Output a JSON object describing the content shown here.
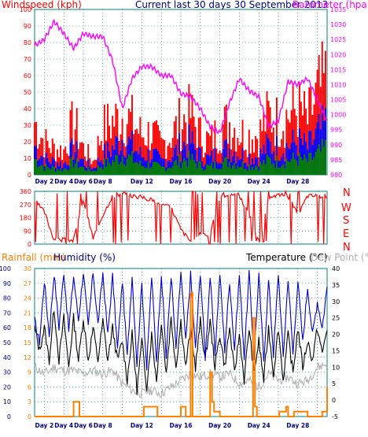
{
  "header": {
    "windspeed_label": "Windspeed (kph)",
    "title": "Current last 30 days 30 September 2013",
    "barometer_label": "Barometer (hpa)"
  },
  "mid_labels": {
    "rainfall_label": "Rainfall (mm)",
    "humidity_label": "Humidity (%)",
    "temperature_label": "Temperature (°C)",
    "dewpoint_label": "Dew Point (°C)"
  },
  "compass": [
    "N",
    "W",
    "S",
    "E",
    "N"
  ],
  "x_ticks": [
    "Day 2",
    "Day 4",
    "Day 6",
    "Day 8",
    "Day 12",
    "Day 16",
    "Day 20",
    "Day 24",
    "Day 28"
  ],
  "colors": {
    "wind": "#ff0000",
    "gust_avg_blue": "#0000ff",
    "wind_avg_green": "#008000",
    "barometer": "#ff00ff",
    "humidity": "#0000c0",
    "temperature": "#000000",
    "dewpoint": "#b0b0b0",
    "rainfall": "#ff8000",
    "axis_label": "#000080",
    "grid": "#008080"
  },
  "chart_data": [
    {
      "type": "line",
      "title": "Current last 30 days 30 September 2013",
      "x_ticks": [
        "Day 2",
        "Day 4",
        "Day 6",
        "Day 8",
        "Day 12",
        "Day 16",
        "Day 20",
        "Day 24",
        "Day 28"
      ],
      "y_left": {
        "label": "Windspeed (kph)",
        "ticks": [
          0,
          10,
          20,
          30,
          40,
          50,
          60,
          70,
          80,
          90,
          100
        ],
        "ylim": [
          0,
          100
        ]
      },
      "y_right": {
        "label": "Barometer (hpa)",
        "ticks": [
          980,
          985,
          990,
          995,
          1000,
          1005,
          1010,
          1015,
          1020,
          1025,
          1030,
          1035
        ],
        "ylim": [
          980,
          1035
        ]
      },
      "grid": true,
      "series": [
        {
          "name": "Barometer (hpa)",
          "axis": "right",
          "x": [
            1,
            2,
            3,
            4,
            5,
            6,
            7,
            8,
            9,
            10,
            11,
            12,
            13,
            14,
            15,
            16,
            17,
            18,
            19,
            20,
            21,
            22,
            23,
            24,
            25,
            26,
            27,
            28,
            29,
            30,
            31
          ],
          "values": [
            1023,
            1025,
            1031,
            1027,
            1022,
            1027,
            1026,
            1026,
            1018,
            1002,
            1012,
            1016,
            1016,
            1013,
            1013,
            1007,
            1006,
            1002,
            996,
            994,
            1004,
            1012,
            1008,
            1006,
            996,
            998,
            1011,
            1010,
            1012,
            1005,
            998
          ]
        },
        {
          "axis": "left",
          "x": [
            1,
            2,
            3,
            4,
            5,
            6,
            7,
            8,
            9,
            10,
            11,
            12,
            13,
            14,
            15,
            16,
            17,
            18,
            19,
            20,
            21,
            22,
            23,
            24,
            25,
            26,
            27,
            28,
            29,
            30,
            31
          ],
          "values": [
            40,
            25,
            20,
            18,
            40,
            20,
            10,
            35,
            40,
            45,
            40,
            30,
            32,
            22,
            30,
            40,
            45,
            30,
            25,
            35,
            40,
            32,
            30,
            30,
            45,
            40,
            45,
            50,
            40,
            60,
            70
          ]
        },
        {
          "axis": "left",
          "x": [
            1,
            2,
            3,
            4,
            5,
            6,
            7,
            8,
            9,
            10,
            11,
            12,
            13,
            14,
            15,
            16,
            17,
            18,
            19,
            20,
            21,
            22,
            23,
            24,
            25,
            26,
            27,
            28,
            29,
            30,
            31
          ],
          "values": [
            22,
            12,
            10,
            8,
            20,
            10,
            5,
            15,
            20,
            28,
            22,
            14,
            16,
            10,
            14,
            22,
            25,
            14,
            12,
            18,
            20,
            16,
            14,
            14,
            22,
            20,
            22,
            25,
            20,
            30,
            38
          ]
        },
        {
          "axis": "left",
          "x": [
            1,
            2,
            3,
            4,
            5,
            6,
            7,
            8,
            9,
            10,
            11,
            12,
            13,
            14,
            15,
            16,
            17,
            18,
            19,
            20,
            21,
            22,
            23,
            24,
            25,
            26,
            27,
            28,
            29,
            30,
            31
          ],
          "values": [
            12,
            6,
            5,
            4,
            10,
            5,
            3,
            8,
            10,
            15,
            12,
            7,
            8,
            5,
            7,
            11,
            12,
            7,
            6,
            9,
            10,
            8,
            7,
            7,
            11,
            10,
            11,
            12,
            10,
            15,
            20
          ]
        }
      ]
    },
    {
      "type": "line",
      "y_left": {
        "ticks": [
          0,
          90,
          180,
          270,
          360
        ],
        "ylim": [
          0,
          360
        ]
      },
      "y_right": {
        "ticks": [
          "N",
          "W",
          "S",
          "E",
          "N"
        ]
      },
      "grid": true,
      "series": [
        {
          "axis": "left",
          "x": [
            1,
            2,
            3,
            4,
            5,
            6,
            7,
            8,
            9,
            10,
            11,
            12,
            13,
            14,
            15,
            16,
            17,
            18,
            19,
            20,
            21,
            22,
            23,
            24,
            25,
            26,
            27,
            28,
            29,
            30,
            31
          ],
          "values": [
            300,
            220,
            30,
            30,
            30,
            300,
            40,
            200,
            330,
            340,
            330,
            320,
            300,
            270,
            250,
            100,
            20,
            80,
            60,
            330,
            330,
            330,
            200,
            30,
            300,
            340,
            330,
            200,
            330,
            330,
            330
          ]
        }
      ]
    },
    {
      "type": "line",
      "x_ticks": [
        "Day 2",
        "Day 4",
        "Day 6",
        "Day 8",
        "Day 12",
        "Day 16",
        "Day 20",
        "Day 24",
        "Day 28"
      ],
      "y_left_outer": {
        "label": "Rainfall (mm)",
        "ticks": [
          0,
          3,
          6,
          9,
          12,
          15,
          18,
          21,
          24,
          27,
          30
        ],
        "ylim": [
          0,
          30
        ]
      },
      "y_left_inner": {
        "label": "Humidity (%)",
        "ticks": [
          0,
          10,
          20,
          30,
          40,
          50,
          60,
          70,
          80,
          90,
          100
        ],
        "ylim": [
          0,
          100
        ]
      },
      "y_right": {
        "label": "Temperature (°C)",
        "ticks": [
          -5,
          0,
          5,
          10,
          15,
          20,
          25,
          30,
          35,
          40
        ],
        "ylim": [
          -5,
          40
        ]
      },
      "grid": true,
      "series": [
        {
          "axis": "left_inner",
          "x": [
            1,
            1.5,
            2,
            2.5,
            3,
            3.5,
            4,
            4.5,
            5,
            5.5,
            6,
            6.5,
            7,
            7.5,
            8,
            8.5,
            9,
            9.5,
            10,
            10.5,
            11,
            11.5,
            12,
            12.5,
            13,
            13.5,
            14,
            14.5,
            15,
            15.5,
            16,
            16.5,
            17,
            17.5,
            18,
            18.5,
            19,
            19.5,
            20,
            20.5,
            21,
            21.5,
            22,
            22.5,
            23,
            23.5,
            24,
            24.5,
            25,
            25.5,
            26,
            26.5,
            27,
            27.5,
            28,
            28.5,
            29,
            29.5,
            30,
            30.5,
            31
          ],
          "values": [
            65,
            50,
            92,
            55,
            97,
            60,
            98,
            58,
            95,
            65,
            98,
            60,
            98,
            62,
            97,
            55,
            95,
            45,
            92,
            40,
            96,
            35,
            90,
            32,
            95,
            38,
            97,
            40,
            96,
            45,
            98,
            50,
            96,
            45,
            98,
            40,
            95,
            42,
            97,
            45,
            92,
            45,
            96,
            40,
            97,
            40,
            95,
            38,
            92,
            42,
            97,
            40,
            94,
            42,
            92,
            50,
            88,
            55,
            78,
            60,
            88
          ]
        },
        {
          "axis": "right",
          "x": [
            1,
            1.5,
            2,
            2.5,
            3,
            3.5,
            4,
            4.5,
            5,
            5.5,
            6,
            6.5,
            7,
            7.5,
            8,
            8.5,
            9,
            9.5,
            10,
            10.5,
            11,
            11.5,
            12,
            12.5,
            13,
            13.5,
            14,
            14.5,
            15,
            15.5,
            16,
            16.5,
            17,
            17.5,
            18,
            18.5,
            19,
            19.5,
            20,
            20.5,
            21,
            21.5,
            22,
            22.5,
            23,
            23.5,
            24,
            24.5,
            25,
            25.5,
            26,
            26.5,
            27,
            27.5,
            28,
            28.5,
            29,
            29.5,
            30,
            30.5,
            31
          ],
          "values": [
            22,
            15,
            22,
            12,
            28,
            12,
            25,
            10,
            25,
            12,
            25,
            12,
            22,
            12,
            24,
            12,
            22,
            12,
            18,
            6,
            20,
            3,
            18,
            4,
            20,
            6,
            24,
            8,
            25,
            10,
            24,
            10,
            22,
            10,
            24,
            12,
            24,
            10,
            20,
            10,
            22,
            8,
            20,
            6,
            22,
            8,
            18,
            6,
            22,
            8,
            22,
            6,
            20,
            8,
            22,
            10,
            18,
            12,
            22,
            14,
            22
          ]
        },
        {
          "axis": "right",
          "x": [
            1,
            2,
            3,
            4,
            5,
            6,
            7,
            8,
            9,
            10,
            11,
            12,
            13,
            14,
            15,
            16,
            17,
            18,
            19,
            20,
            21,
            22,
            23,
            24,
            25,
            26,
            27,
            28,
            29,
            30,
            31
          ],
          "values": [
            10,
            8,
            10,
            9,
            9,
            8,
            9,
            8,
            9,
            5,
            3,
            2,
            3,
            2,
            4,
            6,
            8,
            7,
            8,
            7,
            8,
            5,
            6,
            4,
            8,
            6,
            7,
            5,
            6,
            10,
            11
          ]
        },
        {
          "axis": "left_outer",
          "x": [
            1,
            4.8,
            5,
            5.5,
            5.6,
            12,
            12.2,
            13.5,
            13.6,
            15.9,
            16,
            16.4,
            16.5,
            17,
            17.2,
            18.9,
            19,
            19.2,
            19.4,
            20,
            20.1,
            23.2,
            23.4,
            23.6,
            23.8,
            26,
            26.1,
            26.8,
            27,
            27.6,
            29,
            30.5,
            31
          ],
          "values": [
            0,
            0,
            3,
            3,
            0,
            0,
            2,
            2,
            0,
            0,
            2,
            2,
            0,
            25,
            0,
            0,
            9,
            3,
            1,
            0,
            0,
            0,
            20,
            2,
            0,
            0,
            1,
            2,
            0,
            1,
            0,
            1,
            6
          ]
        }
      ]
    }
  ]
}
